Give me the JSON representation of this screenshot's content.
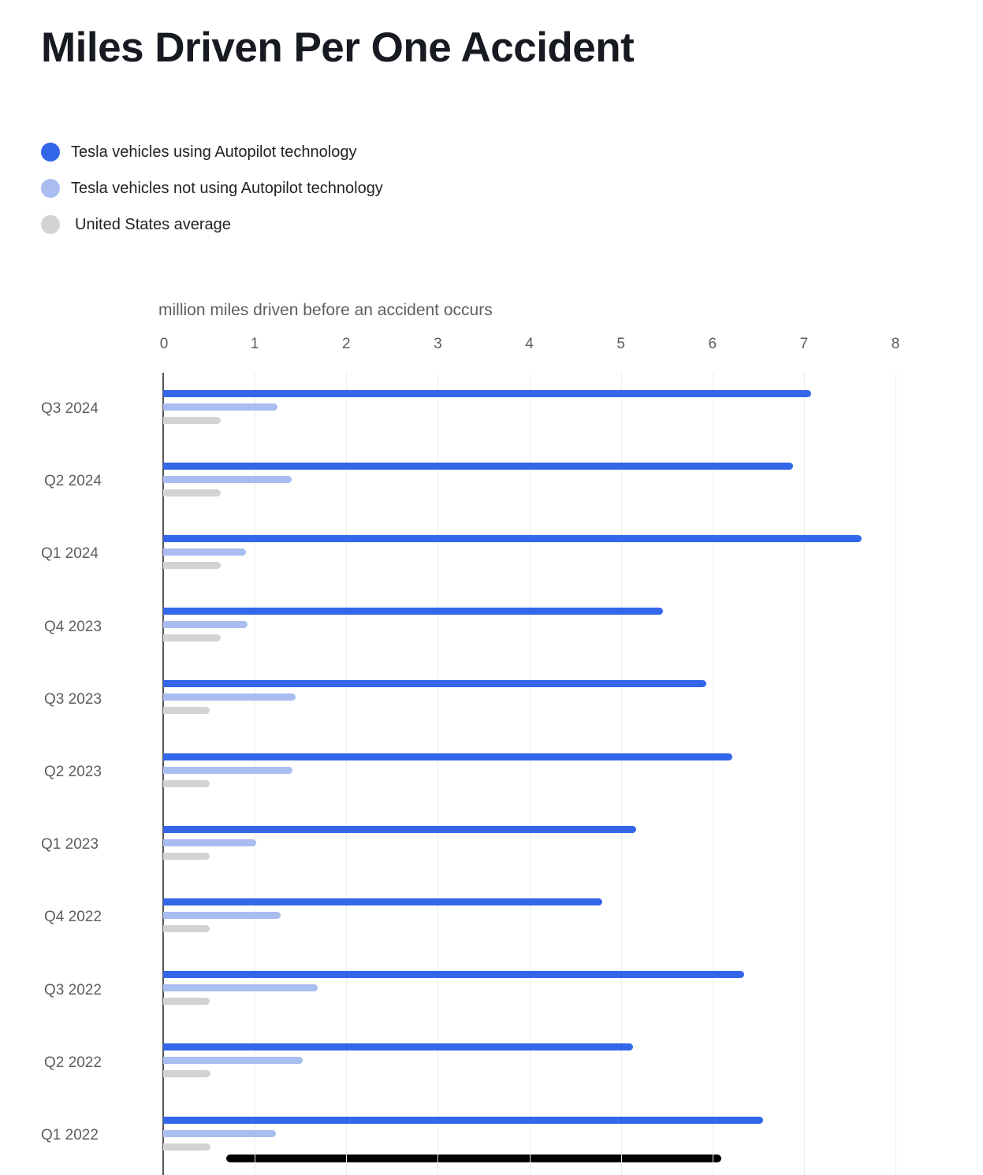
{
  "chart_data": {
    "type": "bar",
    "orientation": "horizontal",
    "title": "Miles Driven Per One Accident",
    "xlabel": "million miles driven before an accident occurs",
    "xlim": [
      0,
      8
    ],
    "x_ticks": [
      "0",
      "1",
      "2",
      "3",
      "4",
      "5",
      "6",
      "7",
      "8"
    ],
    "grid": true,
    "legend_placement": "top-left",
    "categories": [
      "Q3 2024",
      "Q2 2024",
      "Q1 2024",
      "Q4 2023",
      "Q3 2023",
      "Q2 2023",
      "Q1 2023",
      "Q4 2022",
      "Q3 2022",
      "Q2 2022",
      "Q1 2022"
    ],
    "series": [
      {
        "name": "Tesla vehicles using Autopilot technology",
        "color": "#3366e8",
        "values": [
          7.08,
          6.88,
          7.63,
          5.46,
          5.93,
          6.22,
          5.17,
          4.8,
          6.35,
          5.13,
          6.55
        ]
      },
      {
        "name": "Tesla vehicles not using Autopilot technology",
        "color": "#a9bdf1",
        "values": [
          1.25,
          1.4,
          0.9,
          0.92,
          1.45,
          1.41,
          1.02,
          1.28,
          1.69,
          1.52,
          1.23
        ]
      },
      {
        "name": "United States average",
        "color": "#d3d3d3",
        "values": [
          0.63,
          0.63,
          0.63,
          0.63,
          0.51,
          0.51,
          0.51,
          0.51,
          0.51,
          0.52,
          0.52
        ]
      }
    ]
  }
}
